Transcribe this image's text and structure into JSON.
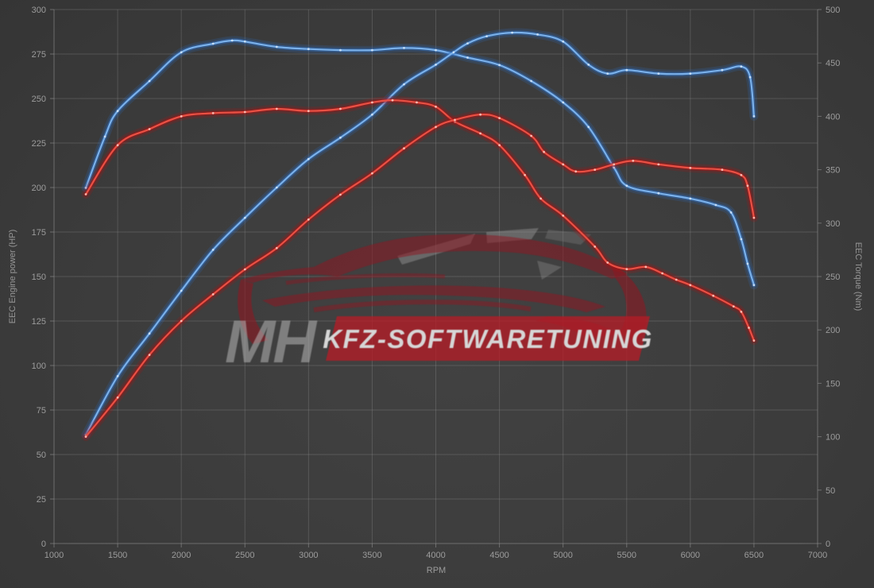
{
  "axes": {
    "x": {
      "label": "RPM",
      "min": 1000,
      "max": 7000,
      "ticks": [
        1000,
        1500,
        2000,
        2500,
        3000,
        3500,
        4000,
        4500,
        5000,
        5500,
        6000,
        6500,
        7000
      ]
    },
    "y_left": {
      "label": "EEC Engine power (HP)",
      "min": 0,
      "max": 300,
      "ticks": [
        0,
        25,
        50,
        75,
        100,
        125,
        150,
        175,
        200,
        225,
        250,
        275,
        300
      ]
    },
    "y_right": {
      "label": "EEC Torque (Nm)",
      "min": 0,
      "max": 500,
      "ticks": [
        0,
        50,
        100,
        150,
        200,
        250,
        300,
        350,
        400,
        450,
        500
      ]
    }
  },
  "watermark": {
    "brand_short": "MH",
    "brand_text": "KFZ-SOFTWARETUNING"
  },
  "colors": {
    "background": "#3c3c3c",
    "grid": "#8f8f8f",
    "tick_text": "#9c9c9c",
    "blue_line": "#2e6ec4",
    "blue_core": "#7ab1eb",
    "red_line": "#b01010",
    "red_core": "#ea5044",
    "watermark_red": "#8d1722",
    "watermark_banner": "#b41c26",
    "watermark_gray": "#9a9a9a"
  },
  "chart_data": {
    "type": "line",
    "xlabel": "RPM",
    "ylabel_left": "EEC Engine power (HP)",
    "ylabel_right": "EEC Torque (Nm)",
    "x_range": [
      1000,
      7000
    ],
    "y_left_range": [
      0,
      300
    ],
    "y_right_range": [
      0,
      500
    ],
    "grid": true,
    "legend": false,
    "series": [
      {
        "name": "blue-torque",
        "axis": "right",
        "unit": "Nm",
        "color_role": "blue",
        "points": [
          [
            1250,
            333
          ],
          [
            1400,
            381
          ],
          [
            1500,
            405
          ],
          [
            1750,
            433
          ],
          [
            2000,
            460
          ],
          [
            2250,
            468
          ],
          [
            2400,
            471
          ],
          [
            2500,
            470
          ],
          [
            2750,
            465
          ],
          [
            3000,
            463
          ],
          [
            3250,
            462
          ],
          [
            3500,
            462
          ],
          [
            3750,
            464
          ],
          [
            4000,
            462
          ],
          [
            4250,
            455
          ],
          [
            4500,
            448
          ],
          [
            4750,
            433
          ],
          [
            5000,
            413
          ],
          [
            5200,
            390
          ],
          [
            5400,
            352
          ],
          [
            5500,
            335
          ],
          [
            5750,
            328
          ],
          [
            6000,
            323
          ],
          [
            6200,
            317
          ],
          [
            6320,
            310
          ],
          [
            6400,
            285
          ],
          [
            6450,
            262
          ],
          [
            6500,
            242
          ]
        ]
      },
      {
        "name": "blue-power",
        "axis": "left",
        "unit": "HP",
        "color_role": "blue",
        "points": [
          [
            1250,
            61
          ],
          [
            1500,
            94
          ],
          [
            1750,
            118
          ],
          [
            2000,
            142
          ],
          [
            2250,
            165
          ],
          [
            2500,
            183
          ],
          [
            2750,
            200
          ],
          [
            3000,
            216
          ],
          [
            3250,
            228
          ],
          [
            3500,
            241
          ],
          [
            3750,
            258
          ],
          [
            4000,
            269
          ],
          [
            4140,
            276
          ],
          [
            4250,
            281
          ],
          [
            4400,
            285
          ],
          [
            4600,
            287
          ],
          [
            4800,
            286
          ],
          [
            5000,
            282
          ],
          [
            5200,
            269
          ],
          [
            5350,
            264
          ],
          [
            5500,
            266
          ],
          [
            5750,
            264
          ],
          [
            6000,
            264
          ],
          [
            6250,
            266
          ],
          [
            6400,
            268
          ],
          [
            6470,
            262
          ],
          [
            6500,
            240
          ]
        ]
      },
      {
        "name": "red-torque",
        "axis": "right",
        "unit": "Nm",
        "color_role": "red",
        "points": [
          [
            1250,
            327
          ],
          [
            1500,
            373
          ],
          [
            1750,
            388
          ],
          [
            2000,
            400
          ],
          [
            2250,
            403
          ],
          [
            2500,
            404
          ],
          [
            2750,
            407
          ],
          [
            3000,
            405
          ],
          [
            3250,
            407
          ],
          [
            3500,
            413
          ],
          [
            3660,
            415
          ],
          [
            3850,
            413
          ],
          [
            4000,
            409
          ],
          [
            4150,
            395
          ],
          [
            4350,
            384
          ],
          [
            4500,
            373
          ],
          [
            4700,
            345
          ],
          [
            4825,
            323
          ],
          [
            5000,
            307
          ],
          [
            5250,
            278
          ],
          [
            5350,
            263
          ],
          [
            5500,
            257
          ],
          [
            5650,
            259
          ],
          [
            5780,
            253
          ],
          [
            5890,
            247
          ],
          [
            6000,
            242
          ],
          [
            6180,
            232
          ],
          [
            6340,
            222
          ],
          [
            6400,
            217
          ],
          [
            6460,
            202
          ],
          [
            6500,
            190
          ]
        ]
      },
      {
        "name": "red-power",
        "axis": "left",
        "unit": "HP",
        "color_role": "red",
        "points": [
          [
            1250,
            60
          ],
          [
            1500,
            82
          ],
          [
            1750,
            106
          ],
          [
            2000,
            125
          ],
          [
            2250,
            140
          ],
          [
            2500,
            154
          ],
          [
            2750,
            166
          ],
          [
            3000,
            182
          ],
          [
            3250,
            196
          ],
          [
            3500,
            208
          ],
          [
            3750,
            222
          ],
          [
            4000,
            234
          ],
          [
            4150,
            238
          ],
          [
            4350,
            241
          ],
          [
            4500,
            239
          ],
          [
            4750,
            229
          ],
          [
            4850,
            220
          ],
          [
            5000,
            213
          ],
          [
            5100,
            209
          ],
          [
            5250,
            210
          ],
          [
            5400,
            213
          ],
          [
            5550,
            215
          ],
          [
            5750,
            213
          ],
          [
            6000,
            211
          ],
          [
            6250,
            210
          ],
          [
            6400,
            207
          ],
          [
            6450,
            201
          ],
          [
            6500,
            183
          ]
        ]
      }
    ]
  }
}
